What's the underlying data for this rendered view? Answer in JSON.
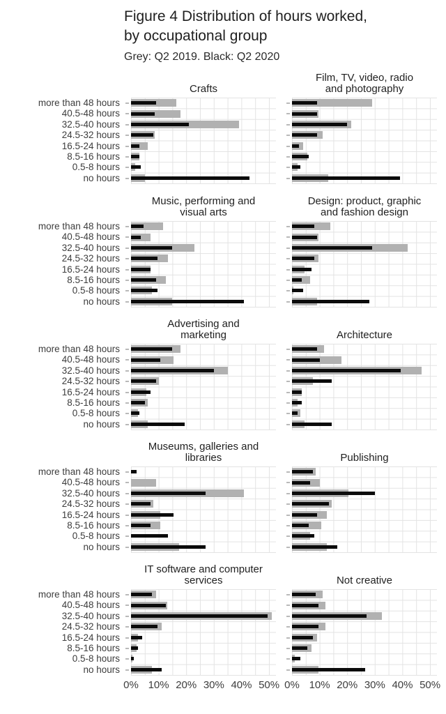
{
  "header": {
    "title": "Figure 4 Distribution of hours worked,\nby occupational group",
    "subtitle": "Grey: Q2 2019. Black: Q2 2020"
  },
  "colors": {
    "grey_2019": "#b1b1b1",
    "black_2020": "#0b0b0b",
    "gridline": "#e3e3e3"
  },
  "chart_data": {
    "type": "bar",
    "orientation": "horizontal",
    "grid": true,
    "legend_position": "subtitle-text",
    "xlim": [
      0,
      52.5
    ],
    "x_tick_values": [
      0,
      10,
      20,
      30,
      40,
      50
    ],
    "x_tick_labels": [
      "0%",
      "10%",
      "20%",
      "30%",
      "40%",
      "50%"
    ],
    "categories": [
      "more than 48 hours",
      "40.5-48 hours",
      "32.5-40 hours",
      "24.5-32 hours",
      "16.5-24 hours",
      "8.5-16 hours",
      "0.5-8 hours",
      "no hours"
    ],
    "series_names": [
      "Q2 2019 (grey)",
      "Q2 2020 (black)"
    ],
    "panels": [
      {
        "title": "Crafts",
        "q2_2019": [
          16.5,
          18,
          39,
          8.5,
          6,
          3,
          1.5,
          5
        ],
        "q2_2020": [
          9,
          8.5,
          21,
          8,
          3,
          3,
          3.5,
          43
        ]
      },
      {
        "title": "Film, TV, video, radio\nand photography",
        "q2_2019": [
          29,
          9.5,
          21.5,
          11,
          4,
          5.5,
          2,
          13
        ],
        "q2_2020": [
          9,
          9,
          20,
          9,
          2.5,
          6,
          3,
          39
        ]
      },
      {
        "title": "Music, performing and\nvisual arts",
        "q2_2019": [
          11.5,
          7,
          23,
          13.5,
          7,
          12.5,
          7.5,
          15
        ],
        "q2_2020": [
          4.5,
          3.5,
          15,
          9.5,
          7,
          9,
          9.5,
          41
        ]
      },
      {
        "title": "Design: product, graphic\nand fashion design",
        "q2_2019": [
          14,
          9.5,
          42,
          9.5,
          4.5,
          6.5,
          0.5,
          9
        ],
        "q2_2020": [
          8,
          9,
          29,
          8,
          7,
          3.5,
          4,
          28
        ]
      },
      {
        "title": "Advertising and\nmarketing",
        "q2_2019": [
          18,
          15.5,
          35,
          10,
          5.5,
          6,
          2.5,
          6
        ],
        "q2_2020": [
          15,
          10.5,
          30,
          9,
          7,
          5,
          3,
          19.5
        ]
      },
      {
        "title": "Architecture",
        "q2_2019": [
          11.5,
          18,
          47,
          7.5,
          3.5,
          2,
          3,
          4.5
        ],
        "q2_2020": [
          9,
          10,
          39.5,
          14.5,
          3.5,
          3.5,
          2,
          14.5
        ]
      },
      {
        "title": "Museums, galleries and\nlibraries",
        "q2_2019": [
          0,
          9,
          41,
          8,
          10.5,
          10.5,
          0,
          17.5
        ],
        "q2_2020": [
          2,
          0,
          27,
          7,
          15.5,
          7,
          13.5,
          27
        ]
      },
      {
        "title": "Publishing",
        "q2_2019": [
          8.5,
          10,
          20.5,
          14.5,
          12.5,
          10.5,
          6.5,
          12.5
        ],
        "q2_2020": [
          7.5,
          6.5,
          30,
          13.5,
          9,
          6,
          8,
          16.5
        ]
      },
      {
        "title": "IT software and computer\nservices",
        "q2_2019": [
          9,
          13,
          51,
          11,
          2.5,
          2,
          0.5,
          7.5
        ],
        "q2_2020": [
          7.5,
          12.5,
          49.5,
          9.5,
          4,
          2.5,
          1,
          11
        ]
      },
      {
        "title": "Not creative",
        "q2_2019": [
          11,
          12,
          32.5,
          12,
          9,
          7,
          1,
          9.5
        ],
        "q2_2020": [
          8.5,
          9.5,
          27,
          9.5,
          7.5,
          5.5,
          3,
          26.5
        ]
      }
    ]
  }
}
